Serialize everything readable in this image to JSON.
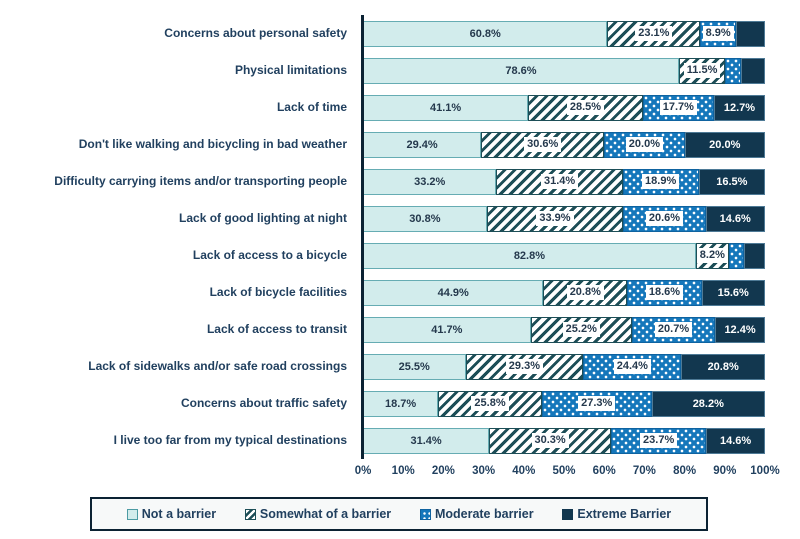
{
  "colors": {
    "text": "#21405f",
    "axis": "#0b2233",
    "not_a_barrier_fill": "#d2ecec",
    "not_a_barrier_border": "#66acb3",
    "hatch_stripe": "#1d4e57",
    "moderate_fill": "#1577bb",
    "moderate_border": "#0f63a0",
    "extreme_fill": "#12374f",
    "extreme_border": "#4e7a96"
  },
  "chart_data": {
    "type": "bar",
    "subtype": "horizontal-stacked-100-percent",
    "title": "",
    "xlabel": "",
    "ylabel": "",
    "xlim": [
      0,
      100
    ],
    "grid": false,
    "legend_position": "bottom",
    "xticks": [
      "0%",
      "10%",
      "20%",
      "30%",
      "40%",
      "50%",
      "60%",
      "70%",
      "80%",
      "90%",
      "100%"
    ],
    "categories": [
      "Concerns about personal safety",
      "Physical limitations",
      "Lack of time",
      "Don't like walking and bicycling in bad weather",
      "Difficulty carrying items and/or transporting people",
      "Lack of good lighting at night",
      "Lack of access to a bicycle",
      "Lack of bicycle facilities",
      "Lack of access to transit",
      "Lack of sidewalks and/or safe road crossings",
      "Concerns about traffic safety",
      "I live too far from my typical destinations"
    ],
    "series": [
      {
        "name": "Not a barrier",
        "pattern": "solid-light-teal",
        "values": [
          60.8,
          78.6,
          41.1,
          29.4,
          33.2,
          30.8,
          82.8,
          44.9,
          41.7,
          25.5,
          18.7,
          31.4
        ]
      },
      {
        "name": "Somewhat of a barrier",
        "pattern": "diagonal-hatch",
        "values": [
          23.1,
          11.5,
          28.5,
          30.6,
          31.4,
          33.9,
          8.2,
          20.8,
          25.2,
          29.3,
          25.8,
          30.3
        ]
      },
      {
        "name": "Moderate barrier",
        "pattern": "blue-dots",
        "values": [
          8.9,
          4.0,
          17.7,
          20.0,
          18.9,
          20.6,
          3.9,
          18.6,
          20.7,
          24.4,
          27.3,
          23.7
        ]
      },
      {
        "name": "Extreme Barrier",
        "pattern": "solid-dark-navy",
        "values": [
          7.2,
          5.9,
          12.7,
          20.0,
          16.5,
          14.6,
          5.1,
          15.6,
          12.4,
          20.8,
          28.2,
          14.6
        ]
      }
    ],
    "unlabeled_segments": [
      [
        0,
        3
      ],
      [
        1,
        2
      ],
      [
        1,
        3
      ],
      [
        6,
        2
      ],
      [
        6,
        3
      ]
    ]
  }
}
